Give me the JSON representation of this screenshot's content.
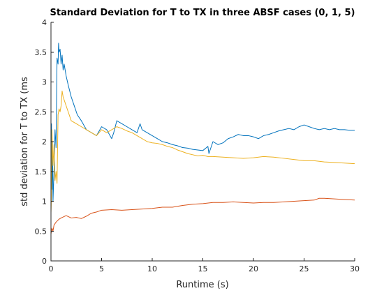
{
  "chart_data": {
    "type": "line",
    "title": "Standard Deviation for T to TX in three ABSF cases (0, 1, 5)",
    "xlabel": "Runtime (s)",
    "ylabel": "std deviation for T to TX (ms",
    "xlim": [
      0,
      30
    ],
    "ylim": [
      0,
      4
    ],
    "xticks": [
      0,
      5,
      10,
      15,
      20,
      25,
      30
    ],
    "yticks": [
      0,
      0.5,
      1,
      1.5,
      2,
      2.5,
      3,
      3.5,
      4
    ],
    "xtick_labels": [
      "0",
      "5",
      "10",
      "15",
      "20",
      "25",
      "30"
    ],
    "ytick_labels": [
      "0",
      "0.5",
      "1",
      "1.5",
      "2",
      "2.5",
      "3",
      "3.5",
      "4"
    ],
    "grid": false,
    "legend": "none",
    "series": [
      {
        "color": "#0072BD",
        "x": [
          0,
          0.05,
          0.1,
          0.15,
          0.2,
          0.3,
          0.4,
          0.5,
          0.6,
          0.7,
          0.75,
          0.8,
          0.9,
          1.0,
          1.1,
          1.2,
          1.3,
          1.5,
          1.7,
          2.0,
          2.3,
          2.6,
          3.0,
          3.5,
          4.0,
          4.5,
          5.0,
          5.5,
          6.0,
          6.2,
          6.5,
          7.0,
          7.5,
          8.0,
          8.5,
          8.8,
          9.0,
          9.5,
          10.0,
          10.5,
          11.0,
          11.5,
          12.0,
          12.5,
          13.0,
          13.5,
          14.0,
          14.5,
          15.0,
          15.5,
          15.6,
          16.0,
          16.5,
          17.0,
          17.5,
          18.0,
          18.5,
          19.0,
          19.5,
          20.0,
          20.5,
          21.0,
          21.5,
          22.0,
          22.5,
          23.0,
          23.5,
          24.0,
          24.5,
          25.0,
          25.5,
          26.0,
          26.5,
          27.0,
          27.5,
          28.0,
          28.5,
          29.0,
          29.5,
          30.0
        ],
        "y": [
          0.8,
          2.3,
          1.2,
          2.0,
          1.0,
          1.5,
          2.2,
          1.9,
          3.4,
          3.3,
          3.65,
          3.5,
          3.55,
          3.3,
          3.45,
          3.2,
          3.3,
          3.1,
          2.95,
          2.75,
          2.6,
          2.45,
          2.35,
          2.2,
          2.15,
          2.1,
          2.25,
          2.2,
          2.05,
          2.15,
          2.35,
          2.3,
          2.25,
          2.2,
          2.15,
          2.3,
          2.2,
          2.15,
          2.1,
          2.05,
          2.0,
          1.98,
          1.95,
          1.93,
          1.9,
          1.89,
          1.87,
          1.86,
          1.85,
          1.92,
          1.8,
          2.0,
          1.95,
          1.98,
          2.05,
          2.08,
          2.12,
          2.1,
          2.1,
          2.08,
          2.05,
          2.1,
          2.12,
          2.15,
          2.18,
          2.2,
          2.22,
          2.2,
          2.25,
          2.28,
          2.25,
          2.22,
          2.2,
          2.22,
          2.2,
          2.22,
          2.2,
          2.2,
          2.19,
          2.19
        ]
      },
      {
        "color": "#D95319",
        "x": [
          0,
          0.1,
          0.2,
          0.3,
          0.5,
          0.8,
          1.0,
          1.5,
          2.0,
          2.5,
          3.0,
          3.5,
          4.0,
          4.5,
          5.0,
          6.0,
          7.0,
          8.0,
          9.0,
          10.0,
          11.0,
          12.0,
          13.0,
          14.0,
          15.0,
          16.0,
          17.0,
          18.0,
          19.0,
          20.0,
          21.0,
          22.0,
          23.0,
          24.0,
          25.0,
          26.0,
          26.5,
          27.0,
          28.0,
          29.0,
          30.0
        ],
        "y": [
          0.45,
          0.55,
          0.5,
          0.6,
          0.65,
          0.7,
          0.72,
          0.76,
          0.72,
          0.73,
          0.71,
          0.75,
          0.8,
          0.82,
          0.85,
          0.86,
          0.85,
          0.86,
          0.87,
          0.88,
          0.9,
          0.9,
          0.93,
          0.95,
          0.96,
          0.98,
          0.98,
          0.99,
          0.98,
          0.97,
          0.98,
          0.98,
          0.99,
          1.0,
          1.01,
          1.02,
          1.05,
          1.05,
          1.04,
          1.03,
          1.02
        ]
      },
      {
        "color": "#EDB120",
        "x": [
          0,
          0.05,
          0.1,
          0.2,
          0.3,
          0.4,
          0.5,
          0.6,
          0.7,
          0.8,
          0.9,
          1.0,
          1.1,
          1.2,
          1.4,
          1.6,
          1.8,
          2.0,
          2.5,
          3.0,
          3.5,
          4.0,
          4.5,
          5.0,
          5.5,
          6.0,
          6.5,
          7.0,
          7.5,
          8.0,
          8.5,
          9.0,
          9.5,
          10.0,
          10.5,
          11.0,
          11.5,
          12.0,
          12.5,
          13.0,
          13.5,
          14.0,
          14.5,
          15.0,
          15.5,
          16.0,
          17.0,
          18.0,
          19.0,
          20.0,
          21.0,
          22.0,
          23.0,
          24.0,
          25.0,
          26.0,
          27.0,
          28.0,
          29.0,
          30.0
        ],
        "y": [
          0.8,
          1.1,
          2.2,
          1.6,
          1.95,
          1.35,
          1.5,
          1.3,
          2.45,
          2.55,
          2.5,
          2.6,
          2.85,
          2.75,
          2.65,
          2.55,
          2.45,
          2.35,
          2.3,
          2.25,
          2.2,
          2.15,
          2.1,
          2.2,
          2.15,
          2.2,
          2.25,
          2.22,
          2.18,
          2.15,
          2.1,
          2.05,
          2.0,
          1.98,
          1.97,
          1.95,
          1.92,
          1.9,
          1.86,
          1.83,
          1.8,
          1.78,
          1.76,
          1.77,
          1.75,
          1.75,
          1.74,
          1.73,
          1.72,
          1.73,
          1.75,
          1.74,
          1.72,
          1.7,
          1.68,
          1.68,
          1.66,
          1.65,
          1.64,
          1.63
        ]
      }
    ]
  }
}
